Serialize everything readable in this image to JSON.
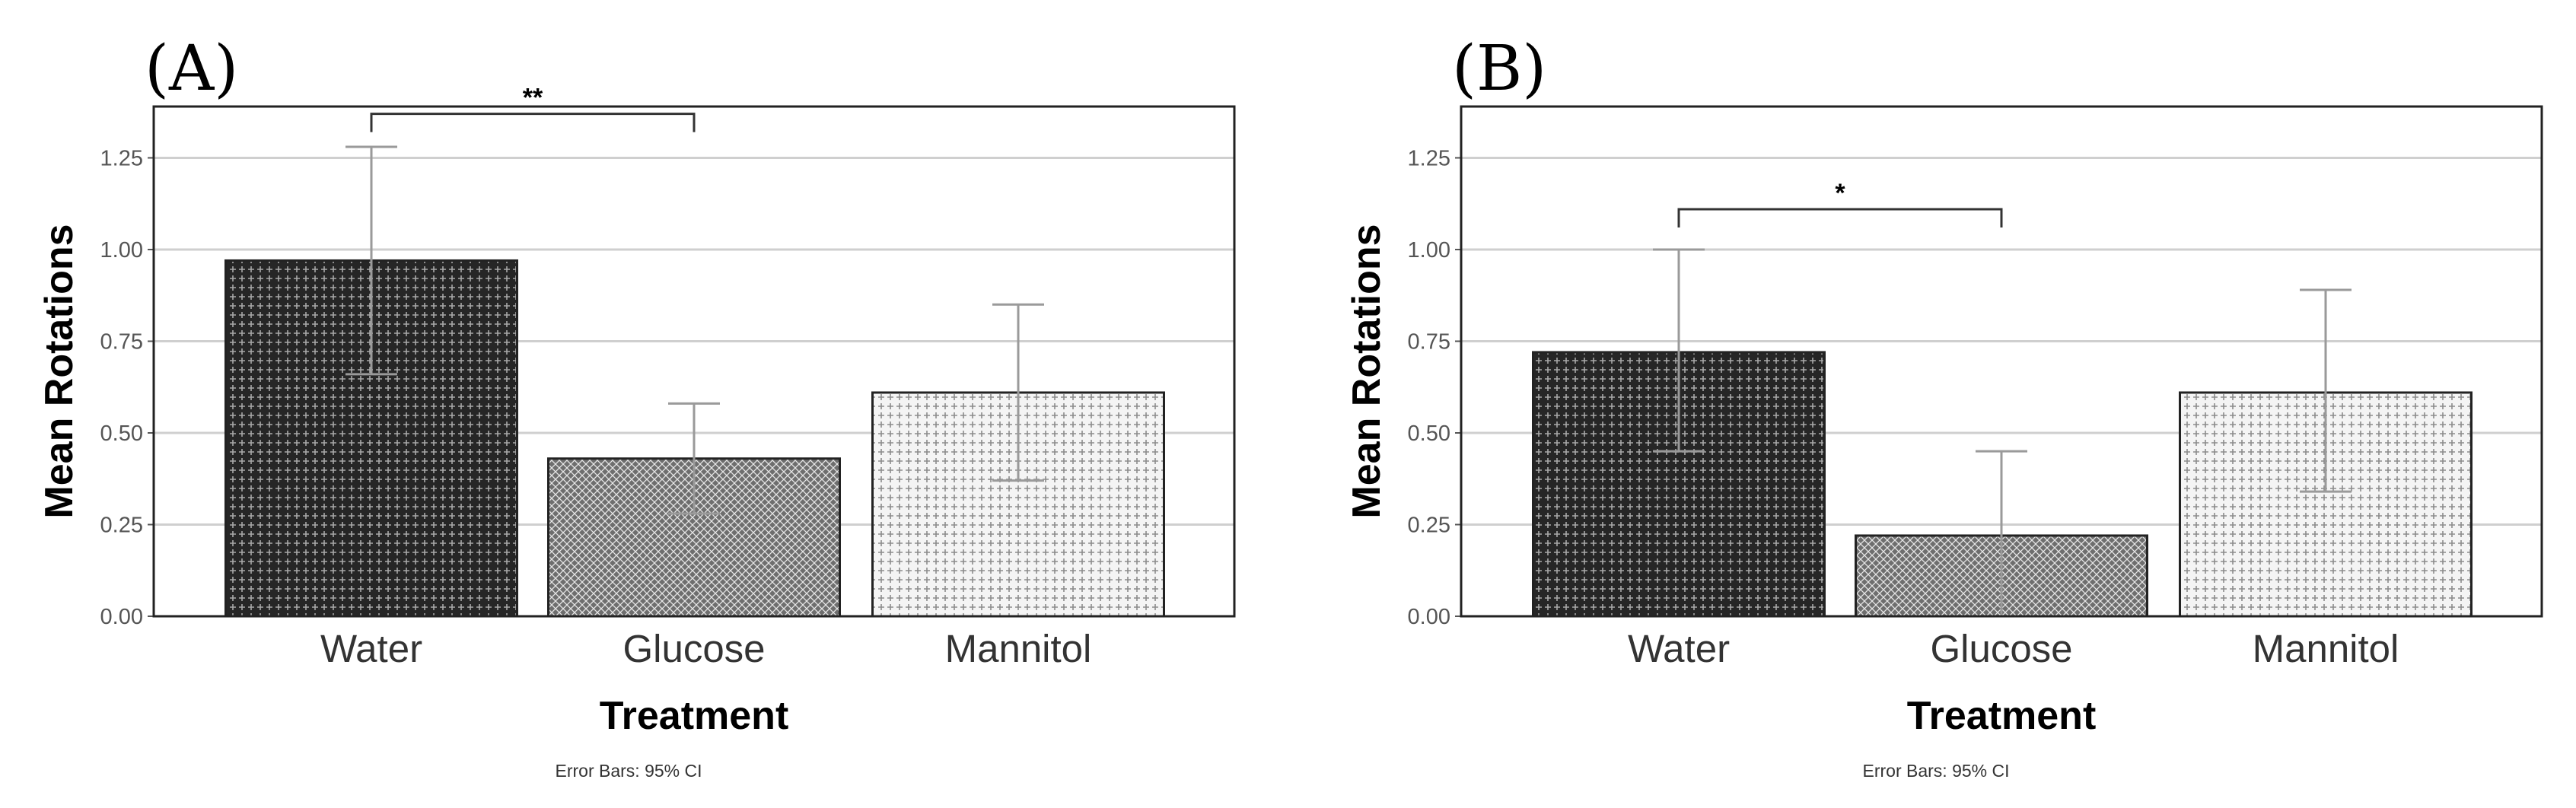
{
  "chart_data": [
    {
      "type": "bar",
      "panel_label": "(A)",
      "categories": [
        "Water",
        "Glucose",
        "Mannitol"
      ],
      "values": [
        0.97,
        0.43,
        0.61
      ],
      "ci_lower": [
        0.66,
        0.28,
        0.37
      ],
      "ci_upper": [
        1.28,
        0.58,
        0.85
      ],
      "xlabel": "Treatment",
      "ylabel": "Mean Rotations",
      "ylim": [
        0,
        1.39
      ],
      "yticks": [
        "0.00",
        "0.25",
        "0.50",
        "0.75",
        "1.00",
        "1.25"
      ],
      "grid": true,
      "footnote": "Error Bars: 95% CI",
      "significance": {
        "from": 0,
        "to": 1,
        "label": "**",
        "y": 1.37
      },
      "fills": [
        "#262626",
        "#7a7a7a",
        "#d4d4d4"
      ]
    },
    {
      "type": "bar",
      "panel_label": "(B)",
      "categories": [
        "Water",
        "Glucose",
        "Mannitol"
      ],
      "values": [
        0.72,
        0.22,
        0.61
      ],
      "ci_lower": [
        0.45,
        0.0,
        0.34
      ],
      "ci_upper": [
        1.0,
        0.45,
        0.89
      ],
      "xlabel": "Treatment",
      "ylabel": "Mean Rotations",
      "ylim": [
        0,
        1.39
      ],
      "yticks": [
        "0.00",
        "0.25",
        "0.50",
        "0.75",
        "1.00",
        "1.25"
      ],
      "grid": true,
      "footnote": "Error Bars: 95% CI",
      "significance": {
        "from": 0,
        "to": 1,
        "label": "*",
        "y": 1.11
      },
      "fills": [
        "#262626",
        "#7a7a7a",
        "#d4d4d4"
      ]
    }
  ]
}
